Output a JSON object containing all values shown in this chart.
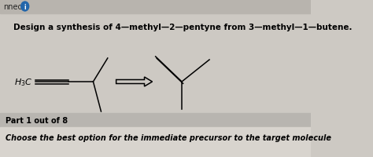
{
  "bg_color": "#cdc9c3",
  "header_bg": "#b8b4ae",
  "question_text": "Design a synthesis of 4—methyl—2—pentyne from 3—methyl—1—butene.",
  "part_label": "Part 1 out of 8",
  "bottom_text": "Choose the best option for the immediate precursor to the target molecule",
  "part_bg": "#b8b5b0",
  "bottom_bg": "#d8d4ce",
  "font_size_question": 7.5,
  "font_size_part": 7,
  "font_size_bottom": 7
}
